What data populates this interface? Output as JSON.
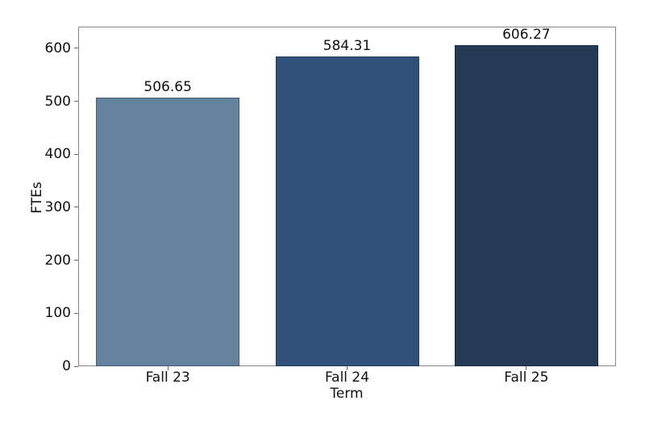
{
  "chart_data": {
    "type": "bar",
    "title": "",
    "xlabel": "Term",
    "ylabel": "FTEs",
    "categories": [
      "Fall 23",
      "Fall 24",
      "Fall 25"
    ],
    "values": [
      506.65,
      584.31,
      606.27
    ],
    "value_labels": [
      "506.65",
      "584.31",
      "606.27"
    ],
    "bar_colors": [
      "#63839f",
      "#32517a",
      "#253a54"
    ],
    "yticks": [
      0,
      100,
      200,
      300,
      400,
      500,
      600
    ],
    "ytick_labels": [
      "0",
      "100",
      "200",
      "300",
      "400",
      "500",
      "600"
    ],
    "ylim": [
      0,
      641
    ],
    "grid": false,
    "legend_position": "none",
    "frame": true
  },
  "colors": {
    "spine": "#888888",
    "tick": "#666666",
    "text": "#111111",
    "background": "#ffffff"
  }
}
